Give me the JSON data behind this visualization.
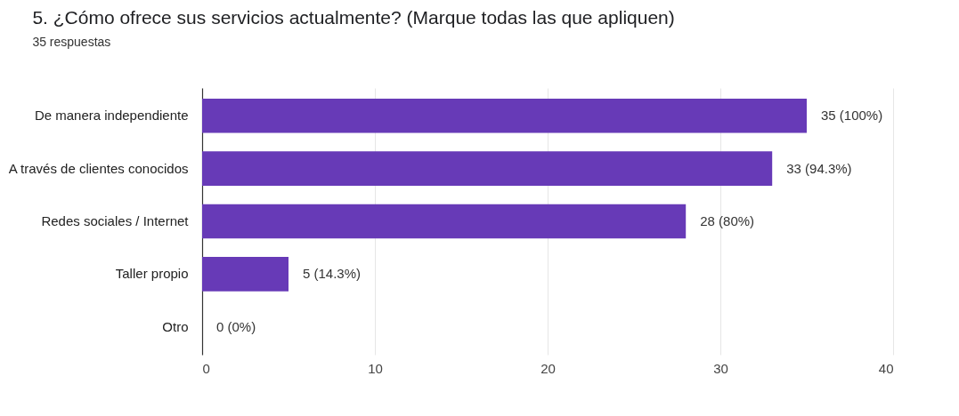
{
  "chart_data": {
    "type": "bar",
    "orientation": "horizontal",
    "title": "5. ¿Cómo ofrece sus servicios actualmente? (Marque todas las que apliquen)",
    "subtitle": "35 respuestas",
    "categories": [
      "De manera independiente",
      "A través de clientes conocidos",
      "Redes sociales / Internet",
      "Taller propio",
      "Otro"
    ],
    "values": [
      35,
      33,
      28,
      5,
      0
    ],
    "value_labels": [
      "35 (100%)",
      "33 (94.3%)",
      "28 (80%)",
      "5 (14.3%)",
      "0 (0%)"
    ],
    "color": "#673ab7",
    "xlim": [
      0,
      40
    ],
    "xticks": [
      0,
      10,
      20,
      30,
      40
    ],
    "grid": "x"
  }
}
